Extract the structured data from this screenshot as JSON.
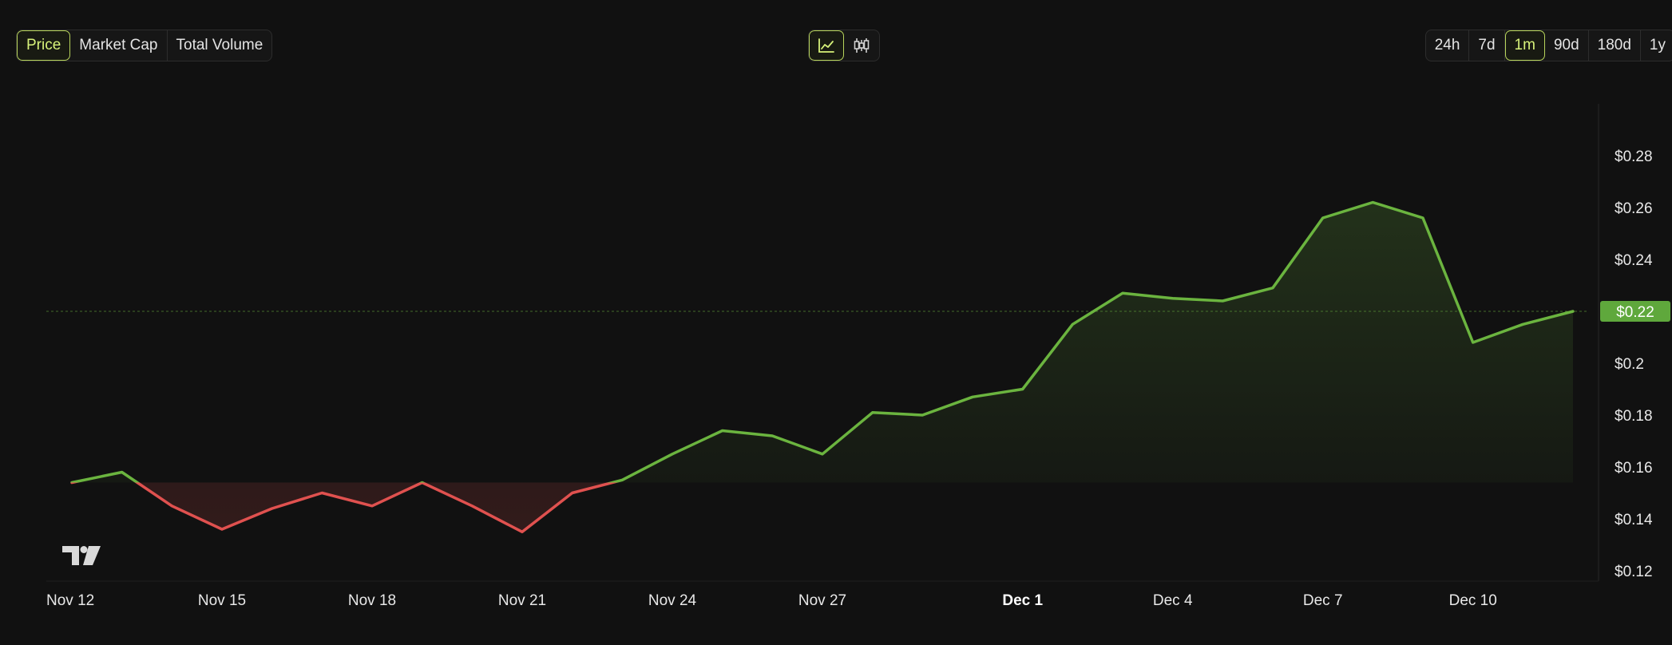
{
  "controls": {
    "metrics": [
      {
        "label": "Price",
        "active": true
      },
      {
        "label": "Market Cap",
        "active": false
      },
      {
        "label": "Total Volume",
        "active": false
      }
    ],
    "chart_types": [
      {
        "icon": "line-chart-icon",
        "active": true
      },
      {
        "icon": "candlestick-chart-icon",
        "active": false
      }
    ],
    "ranges": [
      {
        "label": "24h",
        "active": false
      },
      {
        "label": "7d",
        "active": false
      },
      {
        "label": "1m",
        "active": true
      },
      {
        "label": "90d",
        "active": false
      },
      {
        "label": "180d",
        "active": false
      },
      {
        "label": "1y",
        "active": false
      }
    ]
  },
  "colors": {
    "up": "#6bb43f",
    "down": "#e0514f",
    "accent": "#d7f27a",
    "background": "#111111"
  },
  "chart_data": {
    "type": "line",
    "title": "",
    "xlabel": "",
    "ylabel": "",
    "x": [
      "Nov 12",
      "Nov 13",
      "Nov 14",
      "Nov 15",
      "Nov 16",
      "Nov 17",
      "Nov 18",
      "Nov 19",
      "Nov 20",
      "Nov 21",
      "Nov 22",
      "Nov 23",
      "Nov 24",
      "Nov 25",
      "Nov 26",
      "Nov 27",
      "Nov 28",
      "Nov 29",
      "Nov 30",
      "Dec 1",
      "Dec 2",
      "Dec 3",
      "Dec 4",
      "Dec 5",
      "Dec 6",
      "Dec 7",
      "Dec 8",
      "Dec 9",
      "Dec 10",
      "Dec 11",
      "Dec 12"
    ],
    "series": [
      {
        "values": [
          0.154,
          0.158,
          0.145,
          0.136,
          0.144,
          0.15,
          0.145,
          0.154,
          0.145,
          0.135,
          0.15,
          0.155,
          0.165,
          0.174,
          0.172,
          0.165,
          0.181,
          0.18,
          0.187,
          0.19,
          0.215,
          0.227,
          0.225,
          0.224,
          0.229,
          0.256,
          0.262,
          0.256,
          0.208,
          0.215,
          0.22
        ]
      }
    ],
    "baseline": 0.154,
    "current_price_label": "$0.22",
    "current_price": 0.22,
    "ylim": [
      0.12,
      0.3
    ],
    "y_ticks": [
      "$0.12",
      "$0.14",
      "$0.16",
      "$0.18",
      "$0.2",
      "$0.22",
      "$0.24",
      "$0.26",
      "$0.28"
    ],
    "x_ticks": [
      {
        "label": "Nov 12",
        "bold": false
      },
      {
        "label": "Nov 15",
        "bold": false
      },
      {
        "label": "Nov 18",
        "bold": false
      },
      {
        "label": "Nov 21",
        "bold": false
      },
      {
        "label": "Nov 24",
        "bold": false
      },
      {
        "label": "Nov 27",
        "bold": false
      },
      {
        "label": "Dec 1",
        "bold": true
      },
      {
        "label": "Dec 4",
        "bold": false
      },
      {
        "label": "Dec 7",
        "bold": false
      },
      {
        "label": "Dec 10",
        "bold": false
      }
    ],
    "grid": false,
    "legend": "none"
  }
}
